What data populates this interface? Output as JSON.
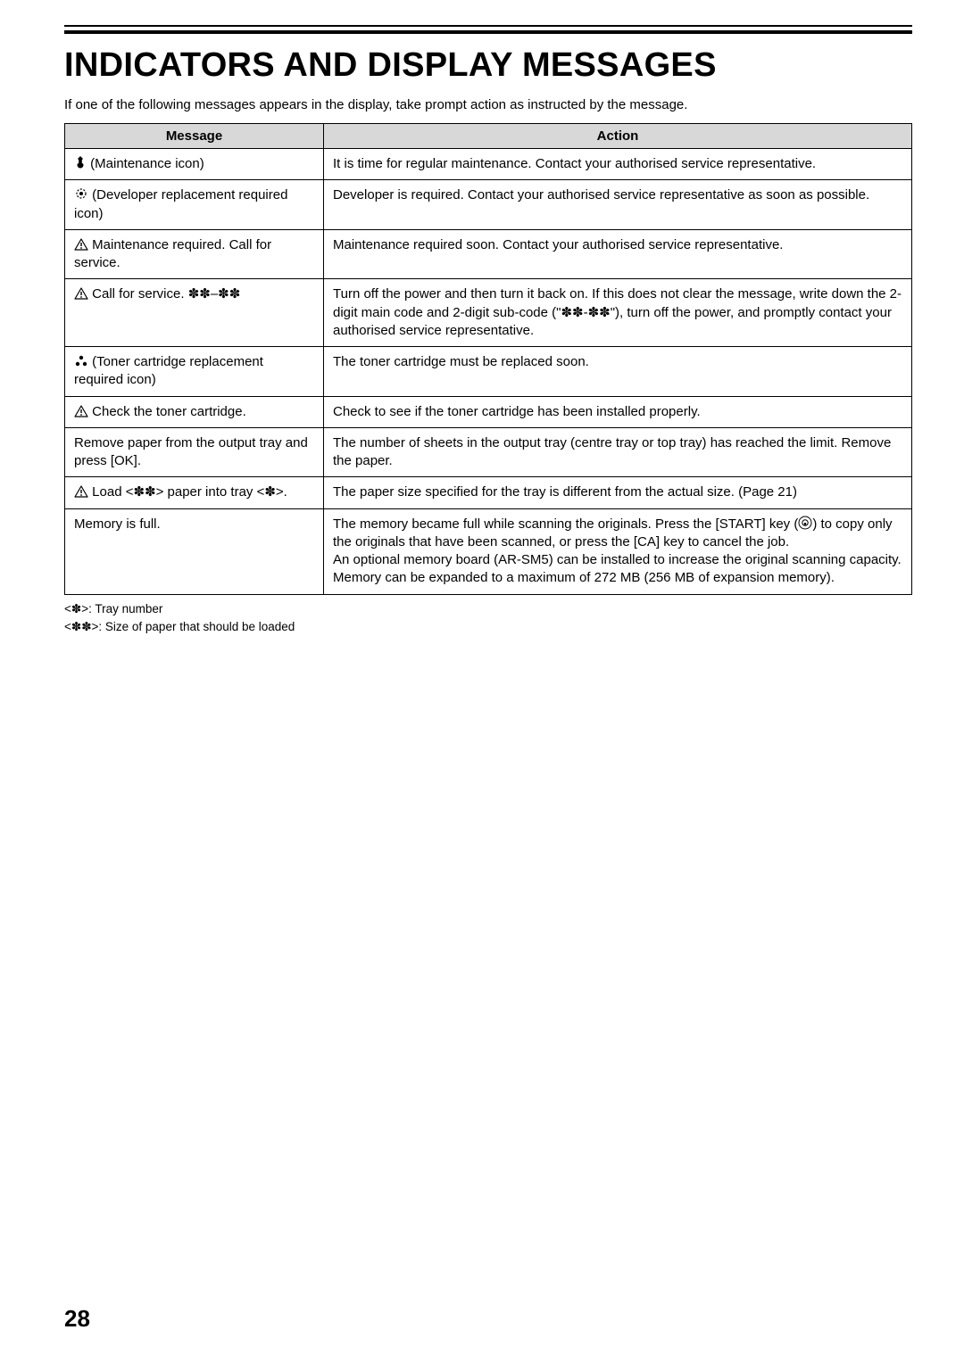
{
  "title": "INDICATORS AND DISPLAY MESSAGES",
  "intro": "If one of the following messages appears in the display, take prompt action as instructed by the message.",
  "headers": {
    "message": "Message",
    "action": "Action"
  },
  "rows": [
    {
      "msg_icon": "maintenance",
      "msg": " (Maintenance icon)",
      "action": "It is time for regular maintenance. Contact your authorised service representative."
    },
    {
      "msg_icon": "developer",
      "msg": " (Developer replacement required icon)",
      "action": "Developer is required. Contact your authorised service representative as soon as possible."
    },
    {
      "msg_icon": "warning",
      "msg": " Maintenance required. Call for service.",
      "action": "Maintenance required soon. Contact your authorised service representative."
    },
    {
      "msg_icon": "warning",
      "msg": " Call for service. ✽✽–✽✽",
      "action": "Turn off the power and then turn it back on. If this does not clear the message, write down the 2-digit main code and 2-digit sub-code (\"✽✽-✽✽\"), turn off the power, and promptly contact your authorised service representative."
    },
    {
      "msg_icon": "toner",
      "msg": " (Toner cartridge replacement required icon)",
      "action": "The toner cartridge must be replaced soon."
    },
    {
      "msg_icon": "warning",
      "msg": " Check the toner cartridge.",
      "action": "Check to see if the toner cartridge has been installed properly."
    },
    {
      "msg_icon": "",
      "msg": "Remove paper from the output tray and press [OK].",
      "action": "The number of sheets in the output tray (centre tray or top tray) has reached the limit. Remove the paper."
    },
    {
      "msg_icon": "warning",
      "msg": " Load <✽✽> paper into tray <✽>.",
      "action": "The paper size specified for the tray is different from the actual size. (Page 21)"
    },
    {
      "msg_icon": "",
      "msg": "Memory is full.",
      "action_html": "The memory became full while scanning the originals. Press the [START] key (<span class=\"icon\"><svg width=\"16\" height=\"16\" viewBox=\"0 0 16 16\"><circle cx=\"8\" cy=\"8\" r=\"7\" fill=\"none\" stroke=\"#000\" stroke-width=\"1\"/><circle cx=\"8\" cy=\"8\" r=\"3.2\" fill=\"none\" stroke=\"#000\" stroke-width=\"1\"/><circle cx=\"8\" cy=\"9.2\" r=\"1.3\" fill=\"#000\"/></svg></span>) to copy only the originals that have been scanned, or press the [CA] key to cancel the job.<br>An optional memory board (AR-SM5) can be installed to increase the original scanning capacity. Memory can be expanded to a maximum of 272 MB (256 MB of expansion memory)."
    }
  ],
  "legend": {
    "line1": "<✽>: Tray number",
    "line2": "<✽✽>: Size of paper that should be loaded"
  },
  "page_number": "28"
}
